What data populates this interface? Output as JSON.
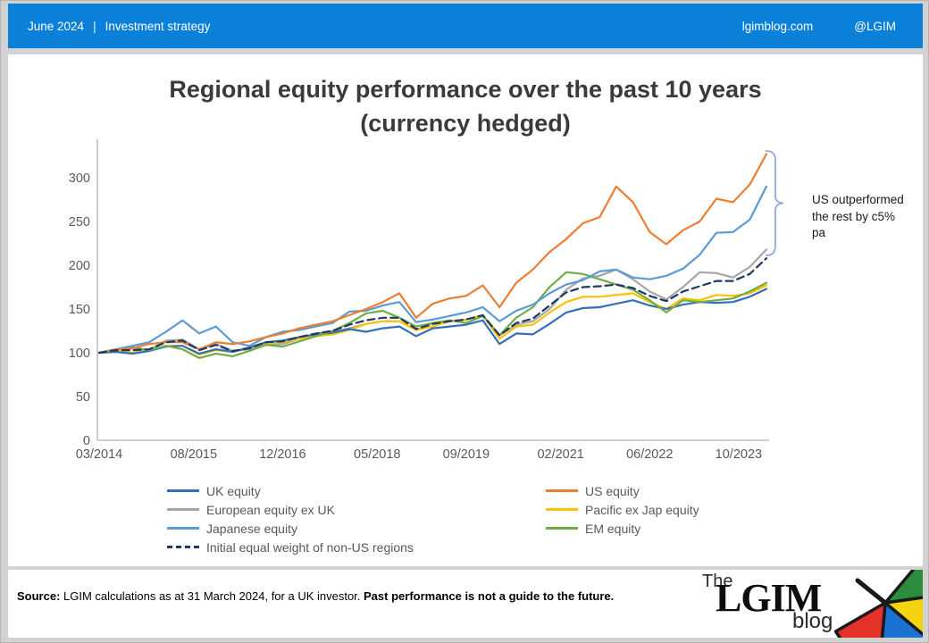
{
  "header": {
    "date": "June 2024",
    "divider": "|",
    "section": "Investment strategy",
    "site": "lgimblog.com",
    "handle": "@LGIM"
  },
  "title": {
    "line1": "Regional equity performance over the past 10 years",
    "line2": "(currency hedged)"
  },
  "annotation": {
    "text": "US outperformed the rest by c5% pa"
  },
  "footer": {
    "source_label": "Source:",
    "source_text": " LGIM calculations as at 31 March 2024, for a UK investor. ",
    "disclaimer": "Past performance is not a guide to the future."
  },
  "logo": {
    "the": "The",
    "lgim": "LGIM",
    "blog": "blog"
  },
  "colors": {
    "header_bg": "#0b80d9",
    "title_text": "#3a3a3a",
    "axis_line": "#bfbfbf",
    "tick_text": "#595959",
    "annotation_bracket": "#8faadc",
    "umbrella": {
      "green": "#2a8c3c",
      "yellow": "#f5d40f",
      "blue": "#1c72d2",
      "red": "#e53229",
      "frame": "#1a1a1a"
    }
  },
  "chart_data": {
    "type": "line",
    "title": "Regional equity performance over the past 10 years (currency hedged)",
    "x_start": "03/2014",
    "x_end": "03/2024",
    "sample_interval_months": 3,
    "x_tick_labels": [
      "03/2014",
      "08/2015",
      "12/2016",
      "05/2018",
      "09/2019",
      "02/2021",
      "06/2022",
      "10/2023"
    ],
    "x_tick_month_index": [
      0,
      17,
      33,
      50,
      66,
      83,
      99,
      115
    ],
    "y_ticks": [
      0,
      50,
      100,
      150,
      200,
      250,
      300
    ],
    "ylim": [
      0,
      335
    ],
    "base_value": 100,
    "grid": false,
    "legend_position": "bottom",
    "legend_rows": [
      [
        "uk",
        "us"
      ],
      [
        "european",
        "pacific"
      ],
      [
        "japanese",
        "em"
      ],
      [
        "eqw"
      ]
    ],
    "series": [
      {
        "id": "european",
        "name": "European equity ex UK",
        "color": "#a6a6a6",
        "dash": false,
        "values": [
          100,
          102,
          100,
          103,
          114,
          115,
          104,
          110,
          102,
          104,
          109,
          110,
          116,
          122,
          124,
          128,
          133,
          136,
          136,
          126,
          134,
          136,
          138,
          143,
          120,
          132,
          136,
          150,
          172,
          185,
          188,
          195,
          184,
          170,
          161,
          175,
          192,
          191,
          186,
          198,
          218
        ]
      },
      {
        "id": "pacific",
        "name": "Pacific ex Jap equity",
        "color": "#ffc000",
        "dash": false,
        "values": [
          100,
          102,
          100,
          102,
          108,
          108,
          98,
          103,
          101,
          106,
          111,
          112,
          116,
          119,
          121,
          126,
          133,
          136,
          136,
          126,
          130,
          136,
          138,
          143,
          116,
          130,
          132,
          146,
          158,
          164,
          164,
          166,
          168,
          158,
          150,
          162,
          160,
          166,
          165,
          168,
          177
        ]
      },
      {
        "id": "uk",
        "name": "UK equity",
        "color": "#3470b8",
        "dash": false,
        "values": [
          100,
          101,
          99,
          102,
          107,
          108,
          99,
          104,
          101,
          106,
          112,
          114,
          118,
          121,
          123,
          127,
          124,
          128,
          130,
          119,
          128,
          130,
          132,
          137,
          110,
          122,
          121,
          133,
          146,
          151,
          152,
          156,
          160,
          154,
          150,
          155,
          158,
          157,
          158,
          164,
          173
        ]
      },
      {
        "id": "em",
        "name": "EM equity",
        "color": "#70ad47",
        "dash": false,
        "values": [
          100,
          104,
          106,
          103,
          108,
          104,
          94,
          99,
          96,
          102,
          109,
          107,
          113,
          119,
          125,
          134,
          145,
          148,
          140,
          130,
          134,
          137,
          134,
          142,
          120,
          140,
          152,
          175,
          192,
          190,
          184,
          178,
          172,
          160,
          146,
          160,
          158,
          160,
          162,
          170,
          180
        ]
      },
      {
        "id": "japanese",
        "name": "Japanese equity",
        "color": "#5b9bd5",
        "dash": false,
        "values": [
          100,
          104,
          108,
          112,
          124,
          137,
          122,
          130,
          112,
          108,
          118,
          124,
          126,
          130,
          134,
          147,
          148,
          154,
          158,
          135,
          138,
          142,
          146,
          152,
          136,
          148,
          155,
          168,
          178,
          183,
          193,
          195,
          186,
          184,
          188,
          196,
          212,
          237,
          238,
          252,
          290
        ]
      },
      {
        "id": "us",
        "name": "US equity",
        "color": "#ed7d31",
        "dash": false,
        "values": [
          100,
          104,
          105,
          110,
          112,
          112,
          104,
          112,
          110,
          113,
          118,
          122,
          128,
          132,
          136,
          143,
          150,
          158,
          168,
          140,
          156,
          162,
          165,
          177,
          152,
          180,
          195,
          215,
          230,
          248,
          255,
          290,
          272,
          238,
          224,
          240,
          250,
          276,
          272,
          292,
          327
        ]
      },
      {
        "id": "eqw",
        "name": "Initial equal weight of non-US regions",
        "color": "#1f3864",
        "dash": true,
        "values": [
          100,
          103,
          103,
          104,
          112,
          114,
          103,
          109,
          102,
          105,
          112,
          113,
          118,
          122,
          125,
          132,
          137,
          140,
          140,
          127,
          133,
          136,
          138,
          143,
          120,
          134,
          139,
          154,
          169,
          175,
          176,
          178,
          174,
          165,
          159,
          170,
          176,
          182,
          182,
          190,
          208
        ]
      }
    ]
  }
}
